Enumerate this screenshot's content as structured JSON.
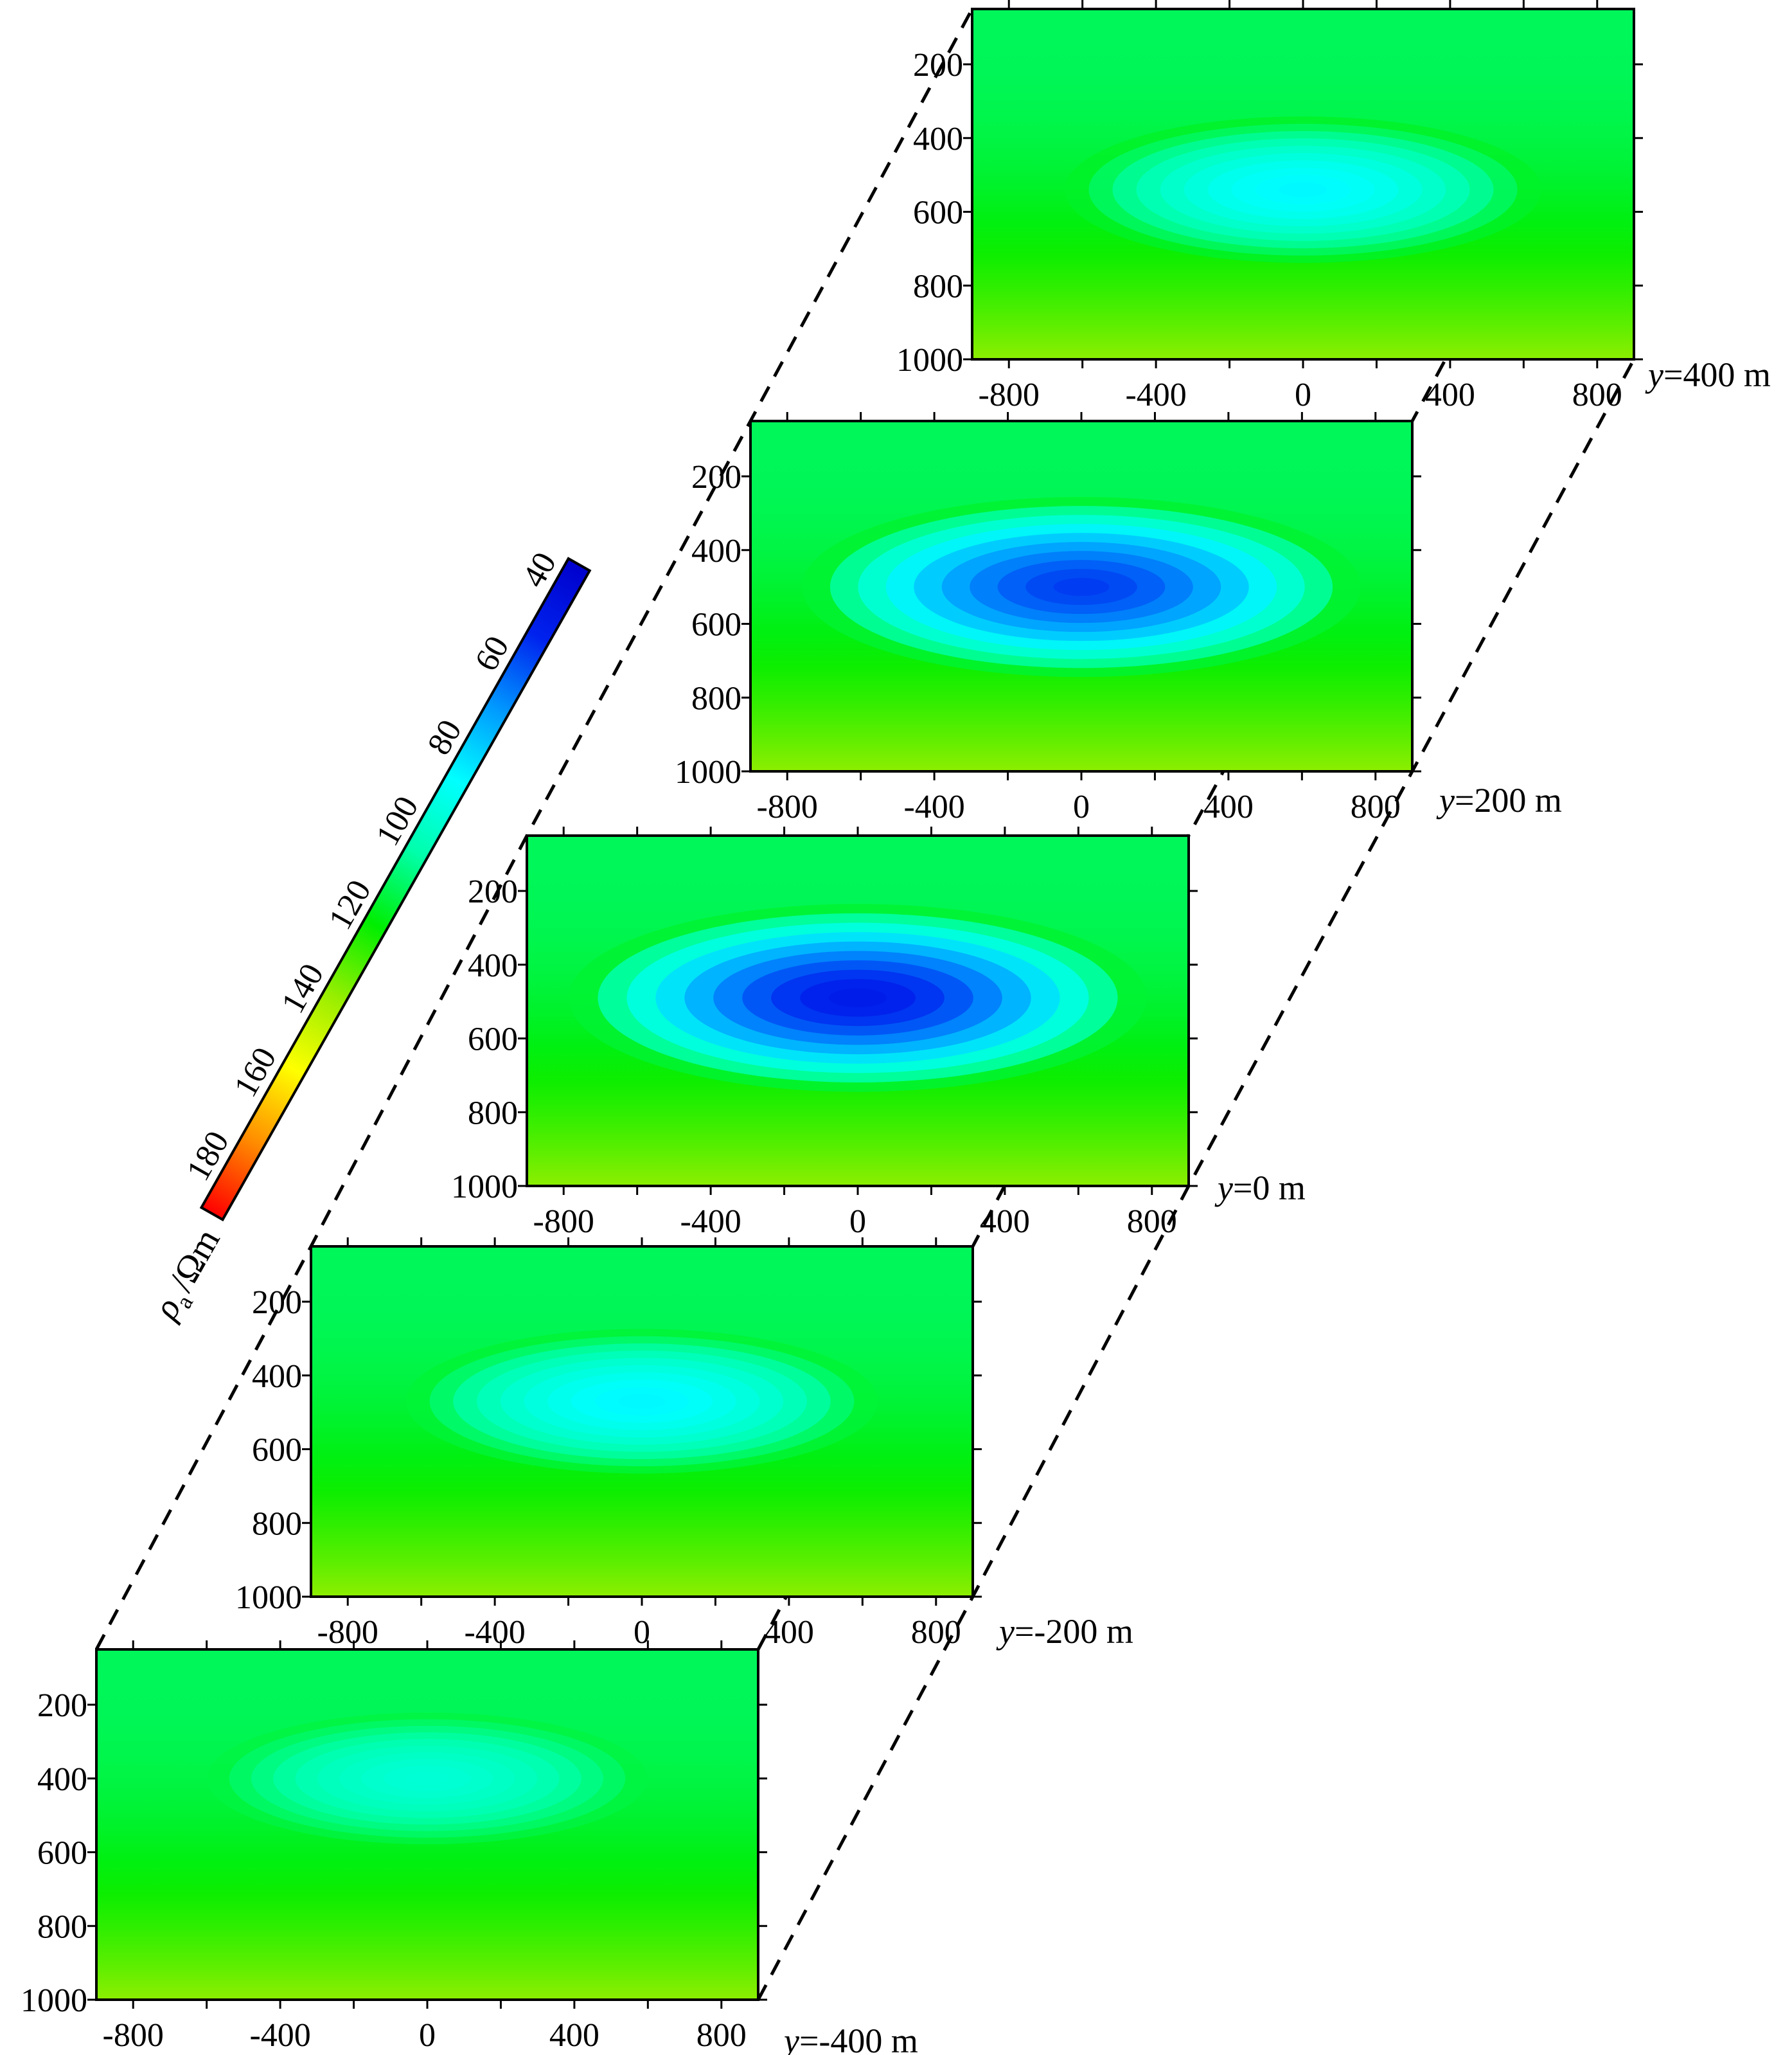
{
  "chart_data": {
    "type": "heatmap",
    "title": "",
    "colorbar": {
      "ticks": [
        180,
        160,
        140,
        120,
        100,
        80,
        60,
        40
      ],
      "range": [
        190,
        35
      ],
      "label_symbol": "ρ",
      "label_subscript": "a",
      "label_unit": "/Ωm",
      "colors": [
        "#ff0000",
        "#ff8c00",
        "#ffff00",
        "#99ee00",
        "#00ee00",
        "#00ffaa",
        "#00ffff",
        "#0099ff",
        "#0022ee",
        "#0000cc"
      ]
    },
    "x_ticks": [
      "-800",
      "-400",
      "0",
      "400",
      "800"
    ],
    "x_tick_values": [
      -800,
      -400,
      0,
      400,
      800
    ],
    "xlim": [
      -900,
      900
    ],
    "y_ticks": [
      "200",
      "400",
      "600",
      "800",
      "1000"
    ],
    "y_tick_values": [
      200,
      400,
      600,
      800,
      1000
    ],
    "ylim": [
      50,
      1000
    ],
    "slices": [
      {
        "label_var": "y",
        "label_value": "=-400 m",
        "anomaly_min": 95,
        "anomaly_center_x": 0,
        "anomaly_center_depth": 400
      },
      {
        "label_var": "y",
        "label_value": "=-200 m",
        "anomaly_min": 85,
        "anomaly_center_x": 0,
        "anomaly_center_depth": 470
      },
      {
        "label_var": "y",
        "label_value": "=0 m",
        "anomaly_min": 48,
        "anomaly_center_x": 0,
        "anomaly_center_depth": 490
      },
      {
        "label_var": "y",
        "label_value": "=200 m",
        "anomaly_min": 55,
        "anomaly_center_x": 0,
        "anomaly_center_depth": 500
      },
      {
        "label_var": "y",
        "label_value": "=400 m",
        "anomaly_min": 85,
        "anomaly_center_x": 0,
        "anomaly_center_depth": 540
      }
    ]
  }
}
